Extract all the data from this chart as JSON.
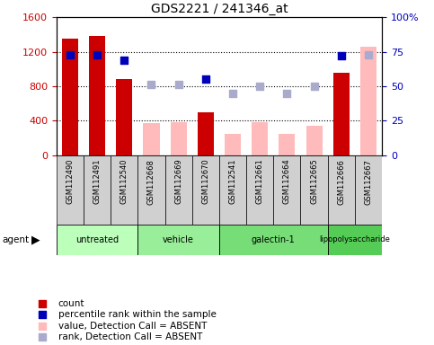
{
  "title": "GDS2221 / 241346_at",
  "samples": [
    "GSM112490",
    "GSM112491",
    "GSM112540",
    "GSM112668",
    "GSM112669",
    "GSM112670",
    "GSM112541",
    "GSM112661",
    "GSM112664",
    "GSM112665",
    "GSM112666",
    "GSM112667"
  ],
  "groups": [
    {
      "label": "untreated",
      "color": "#bbffbb",
      "indices": [
        0,
        1,
        2
      ]
    },
    {
      "label": "vehicle",
      "color": "#99ee99",
      "indices": [
        3,
        4,
        5
      ]
    },
    {
      "label": "galectin-1",
      "color": "#77dd77",
      "indices": [
        6,
        7,
        8,
        9
      ]
    },
    {
      "label": "lipopolysaccharide",
      "color": "#55cc55",
      "indices": [
        10,
        11
      ]
    }
  ],
  "count_values": [
    1350,
    1380,
    880,
    null,
    null,
    500,
    null,
    null,
    null,
    null,
    960,
    null
  ],
  "count_absent": [
    null,
    null,
    null,
    370,
    380,
    null,
    250,
    380,
    250,
    340,
    null,
    1260
  ],
  "pct_values": [
    73,
    73,
    69,
    null,
    null,
    55,
    null,
    null,
    null,
    null,
    72,
    null
  ],
  "pct_absent": [
    null,
    null,
    null,
    51,
    51,
    null,
    45,
    50,
    45,
    50,
    null,
    73
  ],
  "ylim_left": [
    0,
    1600
  ],
  "ylim_right": [
    0,
    100
  ],
  "yticks_left": [
    0,
    400,
    800,
    1200,
    1600
  ],
  "yticks_right": [
    0,
    25,
    50,
    75,
    100
  ],
  "yticklabels_right": [
    "0",
    "25",
    "50",
    "75",
    "100%"
  ],
  "bar_width": 0.6,
  "count_color": "#cc0000",
  "count_absent_color": "#ffbbbb",
  "pct_color": "#0000bb",
  "pct_absent_color": "#aaaacc",
  "grid_color": "#000000",
  "bg_color": "#ffffff",
  "left_tick_color": "#cc0000",
  "right_tick_color": "#0000bb"
}
